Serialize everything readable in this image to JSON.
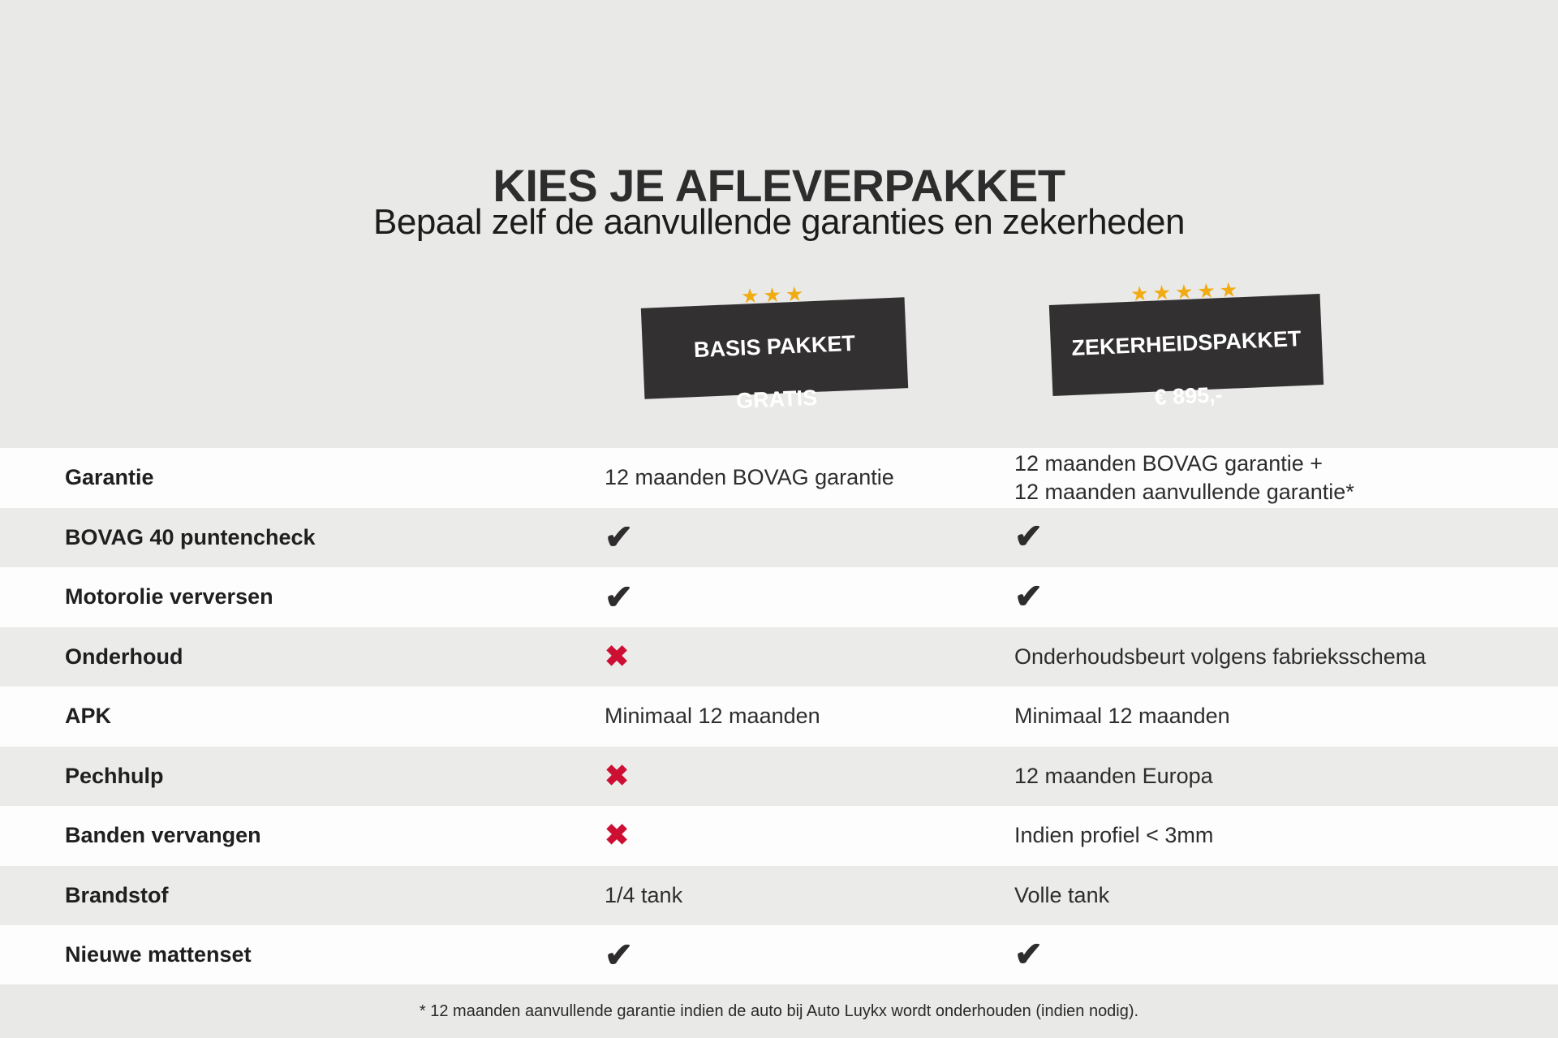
{
  "page": {
    "title": "KIES JE AFLEVERPAKKET",
    "subtitle": "Bepaal zelf de aanvullende garanties en zekerheden",
    "footnote": "* 12 maanden aanvullende garantie indien de auto bij Auto Luykx wordt onderhouden (indien nodig)."
  },
  "colors": {
    "background": "#e9e9e8",
    "row_white": "#fdfdfd",
    "row_gray": "#ebebea",
    "package_box": "#323031",
    "star_gold": "#f0ac12",
    "check_dark": "#2e2c2c",
    "cross_red": "#ce0f34"
  },
  "packages": [
    {
      "id": "basis",
      "stars": 3,
      "line1": "BASIS PAKKET",
      "line2": "GRATIS"
    },
    {
      "id": "zeker",
      "stars": 5,
      "line1": "ZEKERHEIDSPAKKET",
      "line2": "€ 895,-"
    }
  ],
  "table": {
    "rows": [
      {
        "label": "Garantie",
        "basis": {
          "type": "text",
          "text": "12 maanden BOVAG garantie"
        },
        "zeker": {
          "type": "text",
          "text": "12 maanden BOVAG garantie +\n12 maanden aanvullende garantie*"
        }
      },
      {
        "label": "BOVAG 40 puntencheck",
        "basis": {
          "type": "check"
        },
        "zeker": {
          "type": "check"
        }
      },
      {
        "label": "Motorolie verversen",
        "basis": {
          "type": "check"
        },
        "zeker": {
          "type": "check"
        }
      },
      {
        "label": "Onderhoud",
        "basis": {
          "type": "cross"
        },
        "zeker": {
          "type": "text",
          "text": "Onderhoudsbeurt volgens fabrieksschema"
        }
      },
      {
        "label": "APK",
        "basis": {
          "type": "text",
          "text": "Minimaal 12 maanden"
        },
        "zeker": {
          "type": "text",
          "text": "Minimaal 12 maanden"
        }
      },
      {
        "label": "Pechhulp",
        "basis": {
          "type": "cross"
        },
        "zeker": {
          "type": "text",
          "text": "12 maanden Europa"
        }
      },
      {
        "label": "Banden vervangen",
        "basis": {
          "type": "cross"
        },
        "zeker": {
          "type": "text",
          "text": "Indien profiel < 3mm"
        }
      },
      {
        "label": "Brandstof",
        "basis": {
          "type": "text",
          "text": "1/4 tank"
        },
        "zeker": {
          "type": "text",
          "text": "Volle tank"
        }
      },
      {
        "label": "Nieuwe mattenset",
        "basis": {
          "type": "check"
        },
        "zeker": {
          "type": "check"
        }
      }
    ]
  },
  "glyphs": {
    "star": "★",
    "check": "✔",
    "cross": "✖"
  }
}
